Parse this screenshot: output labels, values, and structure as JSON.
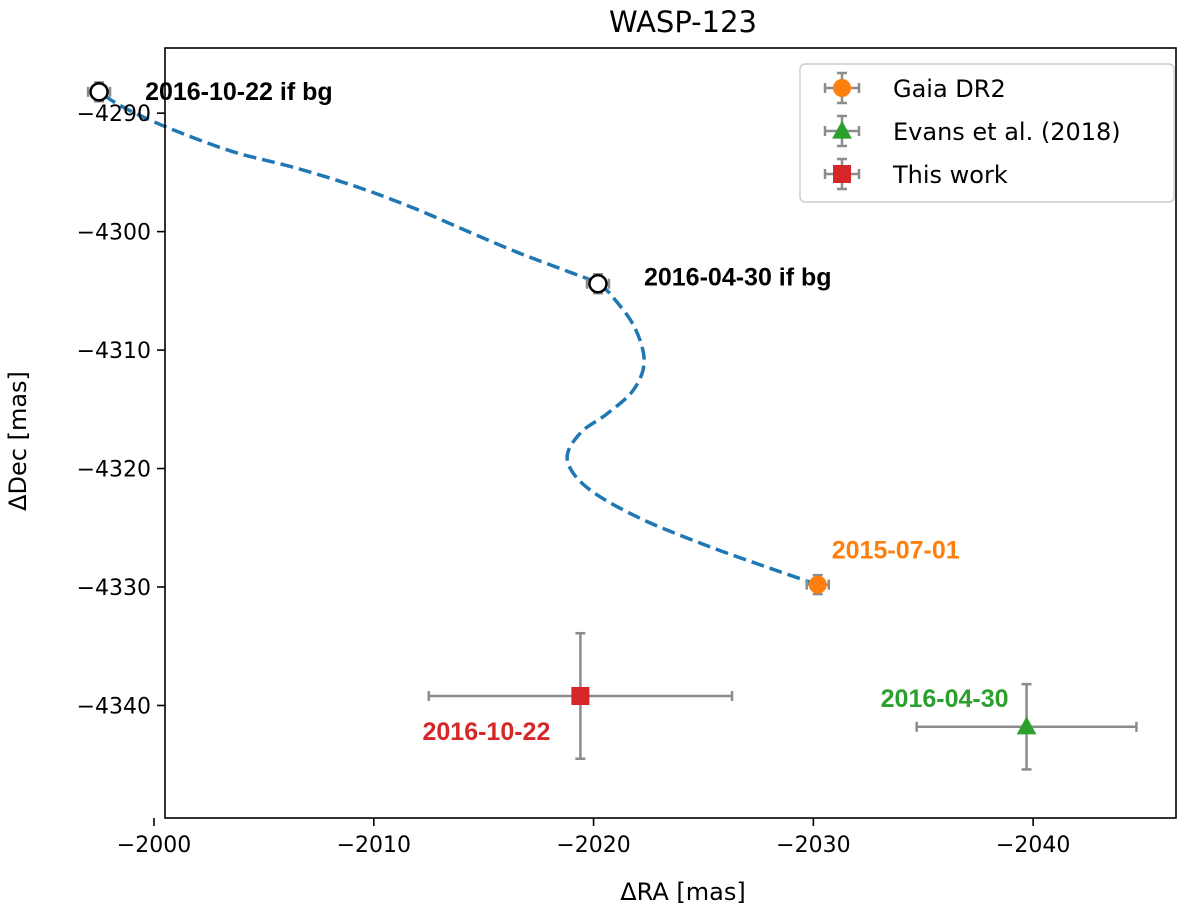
{
  "chart_data": {
    "type": "scatter",
    "title": "WASP-123",
    "xlabel": "ΔRA [mas]",
    "ylabel": "ΔDec [mas]",
    "xlim": [
      -2000.5,
      -2046.5
    ],
    "ylim": [
      -4349.5,
      -4284.5
    ],
    "xticks": [
      -2000,
      -2010,
      -2020,
      -2030,
      -2040
    ],
    "xtick_labels": [
      "−2000",
      "−2010",
      "−2020",
      "−2030",
      "−2040"
    ],
    "yticks": [
      -4290,
      -4300,
      -4310,
      -4320,
      -4330,
      -4340
    ],
    "ytick_labels": [
      "−4290",
      "−4300",
      "−4310",
      "−4320",
      "−4330",
      "−4340"
    ],
    "grid": false,
    "legend_position": "top-right",
    "series": [
      {
        "name": "Gaia DR2",
        "color": "#ff7f0e",
        "marker": "circle",
        "points": [
          {
            "x": -2030.2,
            "y": -4329.8,
            "xerr": 0.5,
            "yerr": 0.8,
            "label": "2015-07-01"
          }
        ]
      },
      {
        "name": "Evans et al. (2018)",
        "color": "#2ca02c",
        "marker": "triangle",
        "points": [
          {
            "x": -2039.7,
            "y": -4341.8,
            "xerr": 5.0,
            "yerr": 3.6,
            "label": "2016-04-30"
          }
        ]
      },
      {
        "name": "This work",
        "color": "#d62728",
        "marker": "square",
        "points": [
          {
            "x": -2019.4,
            "y": -4339.2,
            "xerr": 6.9,
            "yerr": 5.3,
            "label": "2016-10-22"
          }
        ]
      }
    ],
    "background_points": [
      {
        "x": -1997.5,
        "y": -4288.2,
        "xerr": 0.5,
        "yerr": 0.8,
        "label": "2016-10-22 if bg"
      },
      {
        "x": -2020.2,
        "y": -4304.4,
        "xerr": 0.5,
        "yerr": 0.8,
        "label": "2016-04-30 if bg"
      }
    ],
    "track": {
      "color": "#1f77b4",
      "style": "dashed",
      "points": [
        [
          -2030.2,
          -4329.8
        ],
        [
          -2028.0,
          -4328.4
        ],
        [
          -2025.0,
          -4326.4
        ],
        [
          -2022.0,
          -4324.1
        ],
        [
          -2019.7,
          -4321.6
        ],
        [
          -2018.8,
          -4319.2
        ],
        [
          -2019.4,
          -4317.0
        ],
        [
          -2020.6,
          -4315.4
        ],
        [
          -2021.8,
          -4313.4
        ],
        [
          -2022.3,
          -4311.0
        ],
        [
          -2021.9,
          -4308.2
        ],
        [
          -2021.0,
          -4305.8
        ],
        [
          -2020.2,
          -4304.4
        ],
        [
          -2018.6,
          -4303.2
        ],
        [
          -2016.6,
          -4301.8
        ],
        [
          -2014.3,
          -4300.0
        ],
        [
          -2011.8,
          -4298.0
        ],
        [
          -2009.2,
          -4296.2
        ],
        [
          -2006.4,
          -4294.6
        ],
        [
          -2003.5,
          -4293.2
        ],
        [
          -2000.6,
          -4291.2
        ],
        [
          -1998.6,
          -4289.5
        ],
        [
          -1997.5,
          -4288.2
        ]
      ]
    }
  }
}
